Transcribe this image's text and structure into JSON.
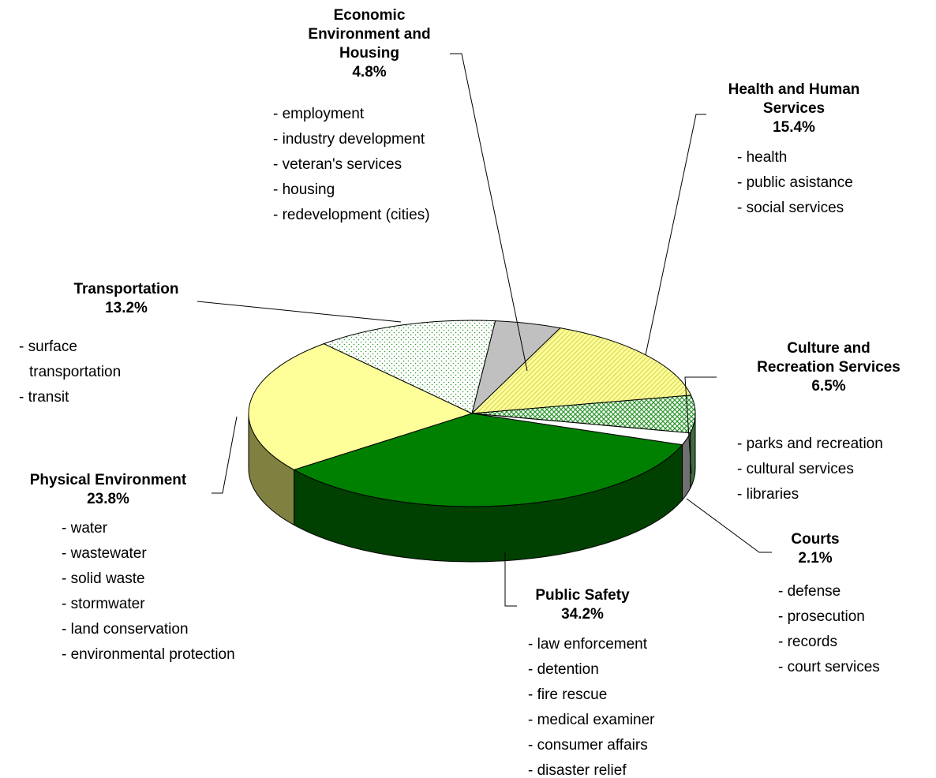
{
  "chart_data": {
    "type": "pie",
    "categories": [
      "Economic Environment and Housing",
      "Health and Human Services",
      "Culture and Recreation Services",
      "Courts",
      "Public Safety",
      "Physical Environment",
      "Transportation"
    ],
    "values": [
      4.8,
      15.4,
      6.5,
      2.1,
      34.2,
      23.8,
      13.2
    ],
    "value_labels": [
      "4.8%",
      "15.4%",
      "6.5%",
      "2.1%",
      "34.2%",
      "23.8%",
      "13.2%"
    ],
    "details": [
      [
        "- employment",
        "- industry development",
        "- veteran's services",
        "- housing",
        "- redevelopment (cities)"
      ],
      [
        "- health",
        "- public asistance",
        "- social services"
      ],
      [
        "- parks and recreation",
        "- cultural services",
        "- libraries"
      ],
      [
        "- defense",
        "- prosecution",
        "- records",
        "- court services"
      ],
      [
        "- law enforcement",
        "- detention",
        "- fire rescue",
        "- medical examiner",
        "- consumer affairs",
        "- disaster relief"
      ],
      [
        "- water",
        "- wastewater",
        "- solid waste",
        "- stormwater",
        "- land conservation",
        "- environmental protection"
      ],
      [
        "- surface transportation",
        "- transit"
      ]
    ],
    "colors": [
      "#c0c0c0",
      "#ffff99",
      "#339933",
      "#ffffff",
      "#008000",
      "#ffff99",
      "#339933"
    ],
    "patterns": [
      "solid",
      "hatch",
      "crosshatch",
      "solid",
      "solid",
      "solid",
      "dots"
    ],
    "side_colors": [
      "#808080",
      "#999966",
      "#3d6e3d",
      "#707070",
      "#004000",
      "#808040",
      "#6f8f6f"
    ]
  }
}
